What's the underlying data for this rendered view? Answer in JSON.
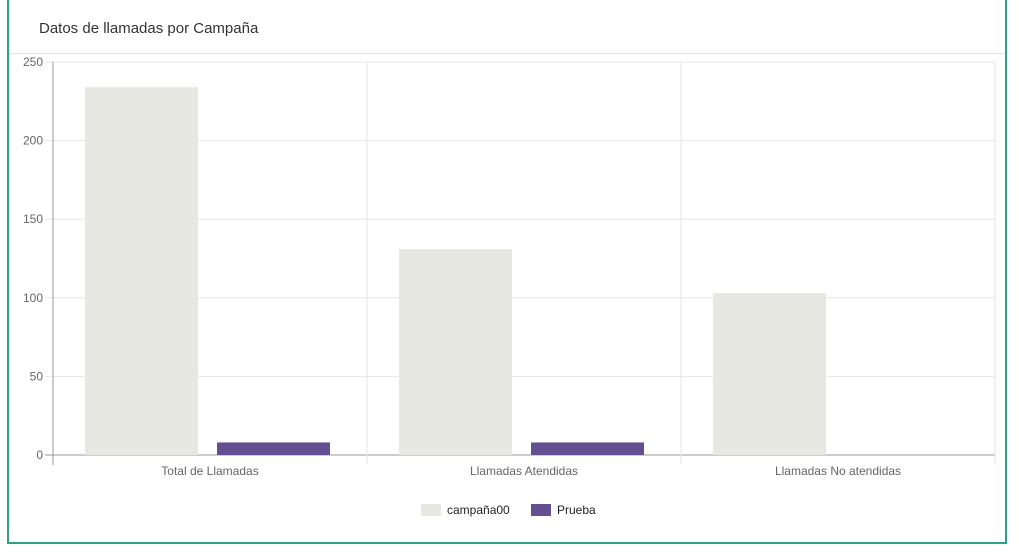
{
  "panel": {
    "title": "Datos de llamadas por Campaña"
  },
  "colors": {
    "accent_border": "#2aa389",
    "grid": "#e6e6e6",
    "axis": "#9a9a9a"
  },
  "chart_data": {
    "type": "bar",
    "title": "",
    "xlabel": "",
    "ylabel": "",
    "categories": [
      "Total de Llamadas",
      "Llamadas Atendidas",
      "Llamadas No atendidas"
    ],
    "series": [
      {
        "name": "campaña00",
        "color": "#e8e8e3",
        "values": [
          234,
          131,
          103
        ]
      },
      {
        "name": "Prueba",
        "color": "#654f93",
        "values": [
          8,
          8,
          0
        ]
      }
    ],
    "ylim": [
      0,
      250
    ],
    "yticks": [
      0,
      50,
      100,
      150,
      200,
      250
    ],
    "grid": true,
    "legend": "bottom-center"
  }
}
